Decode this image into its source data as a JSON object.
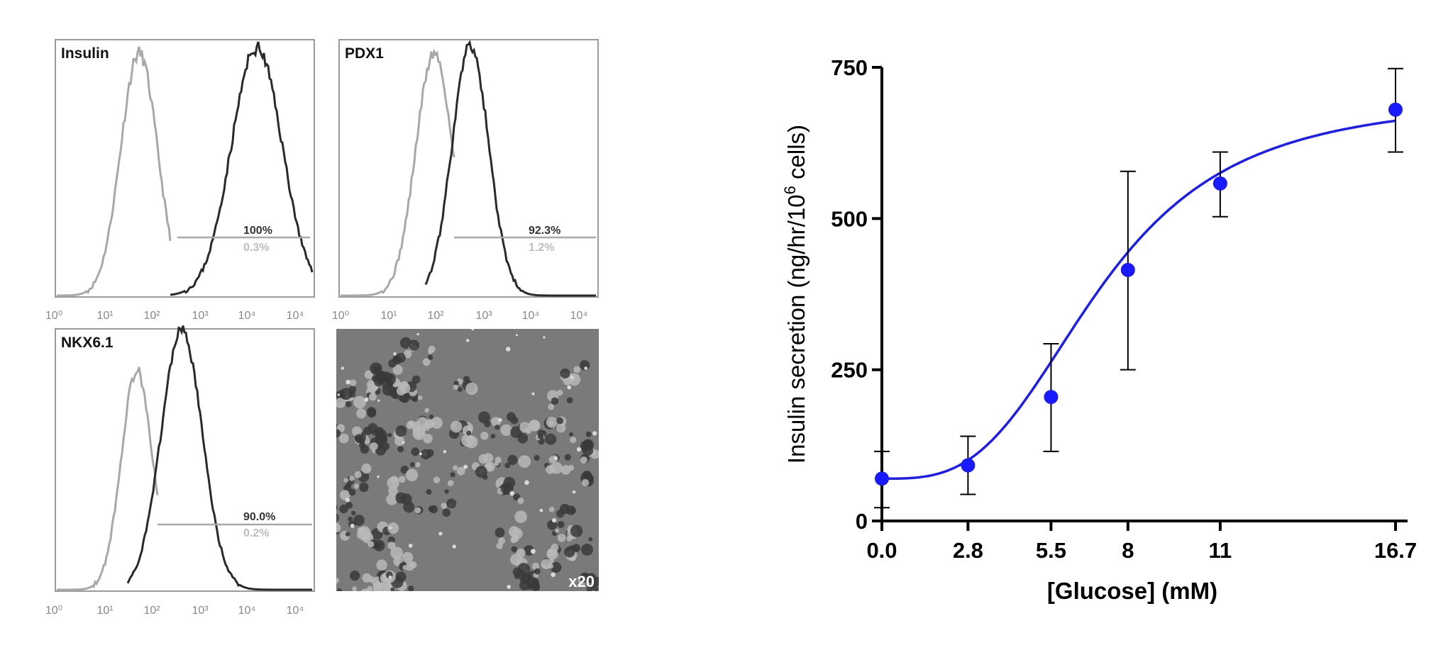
{
  "flow_panels": [
    {
      "label": "Insulin",
      "positive_pct": "100%",
      "control_pct": "0.3%",
      "axis_ticks": [
        "10⁰",
        "10¹",
        "10²",
        "10³",
        "10⁴",
        "10⁴"
      ]
    },
    {
      "label": "PDX1",
      "positive_pct": "92.3%",
      "control_pct": "1.2%",
      "axis_ticks": [
        "10⁰",
        "10¹",
        "10²",
        "10³",
        "10⁴",
        "10⁴"
      ]
    },
    {
      "label": "NKX6.1",
      "positive_pct": "90.0%",
      "control_pct": "0.2%",
      "axis_ticks": [
        "10⁰",
        "10¹",
        "10²",
        "10³",
        "10⁴",
        "10⁴"
      ]
    }
  ],
  "micrograph": {
    "magnification": "x20"
  },
  "chart_data": {
    "type": "line",
    "title": "",
    "xlabel": "[Glucose] (mM)",
    "ylabel_main": "Insulin secretion (ng/hr/10",
    "ylabel_sup": "6",
    "ylabel_end": " cells)",
    "x": [
      0.0,
      2.8,
      5.5,
      8,
      11,
      16.7
    ],
    "x_tick_labels": [
      "0.0",
      "2.8",
      "5.5",
      "8",
      "11",
      "16.7"
    ],
    "y_ticks": [
      0,
      250,
      500,
      750
    ],
    "ylim": [
      0,
      750
    ],
    "series": [
      {
        "values": [
          70,
          92,
          205,
          415,
          558,
          680
        ],
        "err_high": [
          115,
          140,
          293,
          578,
          610,
          748
        ],
        "err_low": [
          22,
          44,
          115,
          250,
          503,
          610
        ]
      }
    ],
    "curve_color": "#1a1aff",
    "point_color": "#1a1aff"
  }
}
